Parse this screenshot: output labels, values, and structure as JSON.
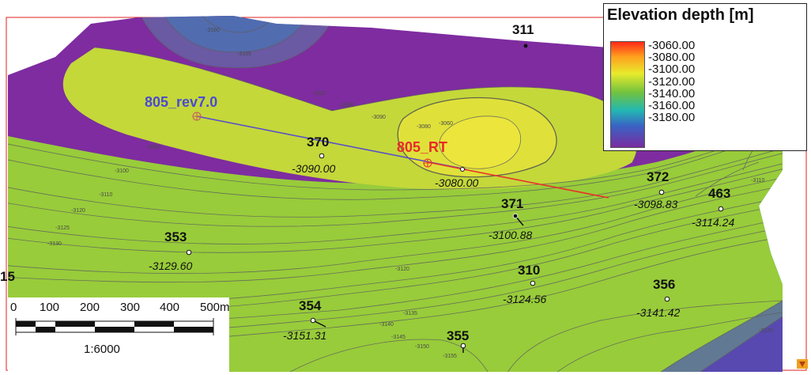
{
  "legend": {
    "title": "Elevation depth [m]",
    "levels": [
      "-3060.00",
      "-3080.00",
      "-3100.00",
      "-3120.00",
      "-3140.00",
      "-3160.00",
      "-3180.00"
    ]
  },
  "colors": {
    "red_line": "#e8332a",
    "blue_line": "#5a50c8",
    "frame": "#e02020",
    "contour": "#5f5f5f"
  },
  "wells": [
    {
      "name": "311",
      "value": ""
    },
    {
      "name": "370",
      "value": "-3090.00"
    },
    {
      "name": "371",
      "value": "-3100.88"
    },
    {
      "name": "372",
      "value": "-3098.83"
    },
    {
      "name": "463",
      "value": "-3114.24"
    },
    {
      "name": "353",
      "value": "-3129.60"
    },
    {
      "name": "310",
      "value": "-3124.56"
    },
    {
      "name": "356",
      "value": "-3141.42"
    },
    {
      "name": "354",
      "value": "-3151.31"
    },
    {
      "name": "355",
      "value": ""
    },
    {
      "name": "15",
      "value": ""
    }
  ],
  "special_wells": {
    "rev": "805_rev7.0",
    "rt": "805_RT",
    "rt_value": "-3080.00"
  },
  "contour_labels": [
    "-3060",
    "-3080",
    "-3090",
    "-3100",
    "-3110",
    "-3120",
    "-3125",
    "-3130",
    "-3135",
    "-3140",
    "-3145",
    "-3150",
    "-3155",
    "-3160",
    "-3165",
    "-3170"
  ],
  "scale_bar": {
    "ticks": [
      "0",
      "100",
      "200",
      "300",
      "400",
      "500m"
    ],
    "ratio": "1:6000"
  },
  "icon": "petrel-logo-icon"
}
